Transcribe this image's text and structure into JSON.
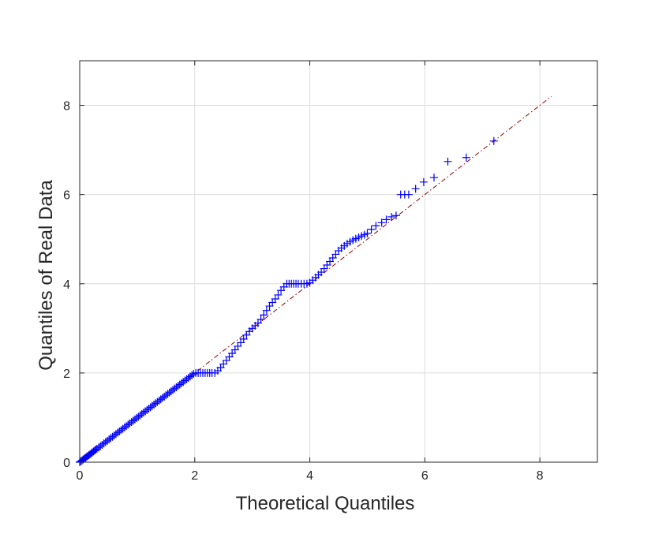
{
  "chart_data": {
    "type": "scatter",
    "title": "",
    "xlabel": "Theoretical Quantiles",
    "ylabel": "Quantiles of Real Data",
    "xlim": [
      0,
      9
    ],
    "ylim": [
      0,
      9
    ],
    "x_ticks": [
      0,
      2,
      4,
      6,
      8
    ],
    "y_ticks": [
      0,
      2,
      4,
      6,
      8
    ],
    "x_tick_labels": [
      "0",
      "2",
      "4",
      "6",
      "8"
    ],
    "y_tick_labels": [
      "0",
      "2",
      "4",
      "6",
      "8"
    ],
    "grid": true,
    "legend": "none",
    "marker": "+",
    "marker_color": "#0000ff",
    "reference_line": {
      "style": "dash-dot",
      "color": "#8b0000",
      "x": [
        1.9,
        8.2
      ],
      "y": [
        1.9,
        8.2
      ]
    },
    "series": [
      {
        "marker": "+",
        "x": [
          0.0,
          0.02,
          0.04,
          0.06,
          0.08,
          0.1,
          0.12,
          0.14,
          0.16,
          0.18,
          0.2,
          0.22,
          0.24,
          0.26,
          0.28,
          0.3,
          0.33,
          0.36,
          0.39,
          0.42,
          0.45,
          0.48,
          0.51,
          0.54,
          0.57,
          0.6,
          0.63,
          0.66,
          0.69,
          0.72,
          0.75,
          0.78,
          0.81,
          0.84,
          0.87,
          0.9,
          0.93,
          0.96,
          0.99,
          1.02,
          1.05,
          1.08,
          1.11,
          1.14,
          1.17,
          1.2,
          1.23,
          1.26,
          1.29,
          1.32,
          1.35,
          1.38,
          1.41,
          1.44,
          1.47,
          1.5,
          1.53,
          1.56,
          1.59,
          1.62,
          1.65,
          1.68,
          1.71,
          1.74,
          1.77,
          1.8,
          1.83,
          1.86,
          1.89,
          1.92,
          1.95,
          1.98,
          2.02,
          2.06,
          2.1,
          2.14,
          2.18,
          2.22,
          2.26,
          2.3,
          2.35,
          2.4,
          2.45,
          2.5,
          2.55,
          2.6,
          2.65,
          2.7,
          2.75,
          2.8,
          2.85,
          2.9,
          2.95,
          3.0,
          3.05,
          3.1,
          3.15,
          3.2,
          3.25,
          3.3,
          3.35,
          3.4,
          3.45,
          3.5,
          3.55,
          3.6,
          3.64,
          3.68,
          3.72,
          3.76,
          3.8,
          3.85,
          3.9,
          3.95,
          4.0,
          4.05,
          4.1,
          4.15,
          4.2,
          4.25,
          4.3,
          4.35,
          4.4,
          4.45,
          4.5,
          4.55,
          4.6,
          4.65,
          4.7,
          4.75,
          4.8,
          4.85,
          4.9,
          4.95,
          5.0,
          5.07,
          5.15,
          5.25,
          5.33,
          5.42,
          5.5,
          5.58,
          5.65,
          5.72,
          5.84,
          5.98,
          6.16,
          6.4,
          6.72,
          7.2
        ],
        "y": [
          0.0,
          0.02,
          0.04,
          0.06,
          0.08,
          0.1,
          0.12,
          0.14,
          0.16,
          0.18,
          0.2,
          0.22,
          0.24,
          0.26,
          0.28,
          0.3,
          0.33,
          0.36,
          0.39,
          0.42,
          0.45,
          0.48,
          0.51,
          0.54,
          0.57,
          0.6,
          0.63,
          0.66,
          0.69,
          0.72,
          0.75,
          0.78,
          0.81,
          0.84,
          0.87,
          0.9,
          0.93,
          0.96,
          0.99,
          1.02,
          1.05,
          1.08,
          1.11,
          1.14,
          1.17,
          1.2,
          1.23,
          1.26,
          1.29,
          1.32,
          1.35,
          1.38,
          1.41,
          1.44,
          1.47,
          1.5,
          1.53,
          1.56,
          1.59,
          1.62,
          1.65,
          1.68,
          1.71,
          1.74,
          1.77,
          1.8,
          1.83,
          1.86,
          1.89,
          1.92,
          1.95,
          1.98,
          2.0,
          2.0,
          2.0,
          2.0,
          2.0,
          2.0,
          2.0,
          2.0,
          2.0,
          2.05,
          2.12,
          2.2,
          2.28,
          2.36,
          2.44,
          2.52,
          2.6,
          2.68,
          2.76,
          2.85,
          2.93,
          3.0,
          3.06,
          3.12,
          3.2,
          3.3,
          3.4,
          3.5,
          3.58,
          3.66,
          3.75,
          3.85,
          3.93,
          4.0,
          4.0,
          4.0,
          4.0,
          4.0,
          4.0,
          4.0,
          4.0,
          4.0,
          4.02,
          4.08,
          4.14,
          4.2,
          4.26,
          4.34,
          4.42,
          4.5,
          4.58,
          4.66,
          4.74,
          4.8,
          4.85,
          4.9,
          4.94,
          4.98,
          5.01,
          5.04,
          5.07,
          5.1,
          5.13,
          5.22,
          5.3,
          5.37,
          5.44,
          5.5,
          5.53,
          6.0,
          6.0,
          6.0,
          6.13,
          6.28,
          6.38,
          6.74,
          6.83,
          7.2
        ]
      }
    ]
  }
}
